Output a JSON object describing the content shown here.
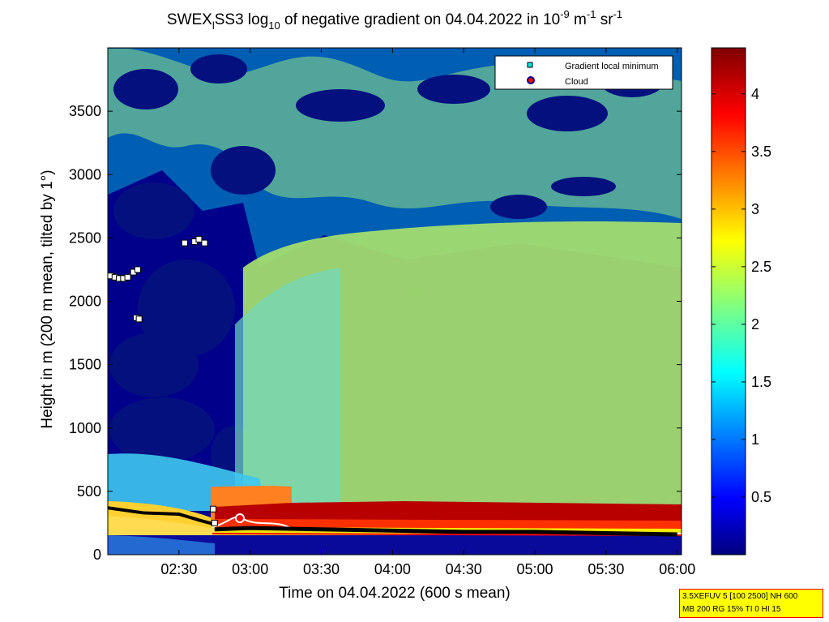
{
  "title": {
    "main_prefix": "SWEX",
    "main_sub": "l",
    "part2": "SS3 log",
    "part2_sub": "10",
    "part3": " of negative gradient on 04.04.2022 in 10",
    "part3_sup": "-9",
    "part4": " m",
    "part4_sup": "-1",
    "part5": " sr",
    "part5_sup": "-1"
  },
  "info_box": {
    "line1": "3.5XEFUV 5 [100 2500] NH 600",
    "line2": "MB 200 RG 15% TI 0 HI 15"
  },
  "colors": {
    "background_low": "#00008b",
    "accent_line": "#000000",
    "cloud_outline": "#ffffff",
    "marker_fill": "#ffffff"
  },
  "chart_data": {
    "type": "heatmap",
    "xlabel": "Time on 04.04.2022 (600 s mean)",
    "ylabel": "Height in m (200 m mean, tilted by 1°)",
    "x_ticks": [
      "02:30",
      "03:00",
      "03:30",
      "04:00",
      "04:30",
      "05:00",
      "05:30",
      "06:00"
    ],
    "x_tick_hours": [
      2.5,
      3.0,
      3.5,
      4.0,
      4.5,
      5.0,
      5.5,
      6.0
    ],
    "xlim_hours": [
      2.0,
      6.03
    ],
    "y_ticks": [
      0,
      500,
      1000,
      1500,
      2000,
      2500,
      3000,
      3500
    ],
    "ylim": [
      0,
      4000
    ],
    "colorbar": {
      "ticks": [
        0.5,
        1,
        1.5,
        2,
        2.5,
        3,
        3.5,
        4
      ],
      "tick_labels": [
        "0.5",
        "1",
        "1.5",
        "2",
        "2.5",
        "3",
        "3.5",
        "4"
      ],
      "range": [
        0,
        4.4
      ],
      "colormap": "jet"
    },
    "legend": {
      "placement": "top-right",
      "entries": [
        {
          "label": "Gradient local minimum",
          "marker": "square",
          "color": "#00e5e5"
        },
        {
          "label": "Cloud",
          "marker": "circle",
          "color": "#ff0000"
        }
      ]
    },
    "gradient_minimum_markers": [
      {
        "x": 2.02,
        "y": 2200
      },
      {
        "x": 2.05,
        "y": 2190
      },
      {
        "x": 2.08,
        "y": 2180
      },
      {
        "x": 2.11,
        "y": 2180
      },
      {
        "x": 2.14,
        "y": 2190
      },
      {
        "x": 2.18,
        "y": 2230
      },
      {
        "x": 2.21,
        "y": 2250
      },
      {
        "x": 2.2,
        "y": 1870
      },
      {
        "x": 2.22,
        "y": 1860
      },
      {
        "x": 2.54,
        "y": 2460
      },
      {
        "x": 2.61,
        "y": 2470
      },
      {
        "x": 2.64,
        "y": 2490
      },
      {
        "x": 2.68,
        "y": 2460
      },
      {
        "x": 2.74,
        "y": 360
      },
      {
        "x": 2.75,
        "y": 250
      }
    ],
    "aerosol_layer_top": [
      {
        "x": 2.0,
        "y": 370
      },
      {
        "x": 2.25,
        "y": 330
      },
      {
        "x": 2.5,
        "y": 320
      },
      {
        "x": 2.65,
        "y": 270
      },
      {
        "x": 2.75,
        "y": 240
      }
    ],
    "cloud_base": [
      {
        "x": 2.75,
        "y": 200
      },
      {
        "x": 3.0,
        "y": 210
      },
      {
        "x": 3.5,
        "y": 200
      },
      {
        "x": 4.0,
        "y": 190
      },
      {
        "x": 4.5,
        "y": 180
      },
      {
        "x": 5.0,
        "y": 180
      },
      {
        "x": 5.5,
        "y": 170
      },
      {
        "x": 6.0,
        "y": 160
      }
    ]
  }
}
